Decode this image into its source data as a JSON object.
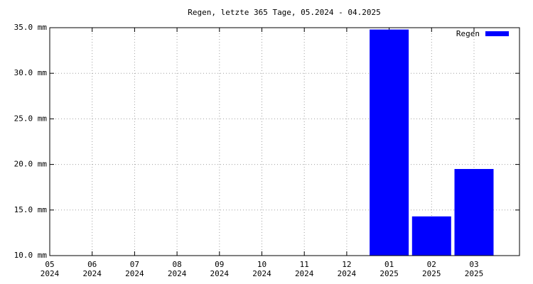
{
  "chart_data": {
    "type": "bar",
    "title": "Regen, letzte 365 Tage, 05.2024 - 04.2025",
    "categories": [
      [
        "05",
        "2024"
      ],
      [
        "06",
        "2024"
      ],
      [
        "07",
        "2024"
      ],
      [
        "08",
        "2024"
      ],
      [
        "09",
        "2024"
      ],
      [
        "10",
        "2024"
      ],
      [
        "11",
        "2024"
      ],
      [
        "12",
        "2024"
      ],
      [
        "01",
        "2025"
      ],
      [
        "02",
        "2025"
      ],
      [
        "03",
        "2025"
      ]
    ],
    "series": [
      {
        "name": "Regen",
        "color": "#0000ff",
        "values": [
          null,
          null,
          null,
          null,
          null,
          null,
          null,
          null,
          34.8,
          14.3,
          19.5
        ]
      }
    ],
    "ylim": [
      10,
      35
    ],
    "yticks": [
      {
        "value": 10,
        "label": "10.0 mm"
      },
      {
        "value": 15,
        "label": "15.0 mm"
      },
      {
        "value": 20,
        "label": "20.0 mm"
      },
      {
        "value": 25,
        "label": "25.0 mm"
      },
      {
        "value": 30,
        "label": "30.0 mm"
      },
      {
        "value": 35,
        "label": "35.0 mm"
      }
    ],
    "grid": true,
    "legend": "top-right"
  }
}
